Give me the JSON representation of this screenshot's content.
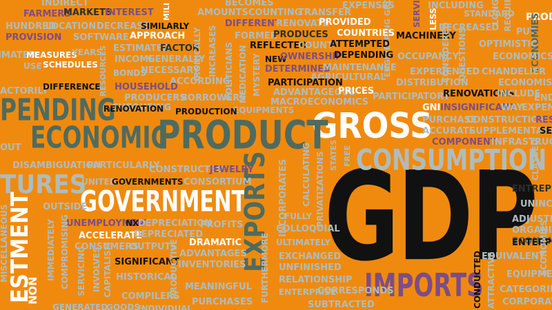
{
  "colors": {
    "background": "#f08a0e",
    "white": "#ffffff",
    "black": "#111111",
    "teal": "#4f6b5f",
    "gray": "#aebcbd",
    "purple": "#7d4d86"
  },
  "words": {
    "gdp": "GDP",
    "gross": "GROSS",
    "product": "PRODUCT",
    "economic": "ECONOMIC",
    "government": "GOVERNMENT",
    "consumption": "CONSUMPTION",
    "imports": "IMPORTS",
    "exports": "EXPORTS",
    "spending": "PENDING",
    "tures": "TURES",
    "estment": "ESTMENT",
    "indirect": "INDIRECT",
    "farmers": "FARMERS",
    "markets": "MARKETS",
    "interest": "INTEREST",
    "becomes": "BECOMES",
    "amounts": "AMOUNTS",
    "counting": "COUNTING",
    "transfer": "TRANSFER",
    "expenses": "EXPENSES",
    "engineering": "ENGINEERING GRO",
    "service": "SERVICE",
    "including": "INCLUDING",
    "standard": "STANDARD",
    "long": "LONG",
    "requires": "REQUIRES",
    "produ": "PRODU",
    "hundred": "HUNDRED",
    "location": "LOCATION",
    "decrease": "DECREASE",
    "similarly": "SIMILARLY",
    "different": "DIFFERENT",
    "renovate": "RENOVATE",
    "provided": "PROVIDED",
    "less": "LESS",
    "decreased": "DECREASED",
    "put": "PUT",
    "provision": "PROVISION",
    "software": "SOFTWARE",
    "approach": "APPROACH",
    "former": "FORMER",
    "produces": "PRODUCES",
    "countries": "COUNTRIES",
    "machinery": "MACHINERY",
    "considered": "CONSIDERED",
    "economies": "ECONOMIES",
    "estimated": "ESTIMATED",
    "factor": "FACTOR",
    "reflected": "REFLECTED",
    "count": "COUNT",
    "attempted": "ATTEMPTED",
    "optimistic": "OPTIMISTIC",
    "measures": "MEASURES",
    "years": "YEARS",
    "ironically": "IRONICALLY",
    "new": "NEW",
    "ownership": "OWNERSHIP",
    "depending": "DEPENDING",
    "occupancy": "OCCUPANCY",
    "economics": "ECONOMICS",
    "use": "USE",
    "schedules": "SCHEDULES",
    "income": "INCOME",
    "generally": "GENERALLY",
    "increases": "INCREASES",
    "determined": "DETERMINED",
    "maintenance": "MAINTENANCE",
    "questions": "QUESTIONS",
    "bonds": "BONDS",
    "necessary": "NECESSARY",
    "politicians": "POLITICIANS",
    "agricultural": "AGRICULTURAL",
    "experienced": "EXPERIENCED",
    "chandelier": "CHANDELIER",
    "resources": "RESOURCES",
    "according": "ACCORDING",
    "medication": "MEDICATION",
    "participation": "PARTICIPATION",
    "distribution": "DISTRIBUTION",
    "economists": "ECONOMISTS",
    "household": "HOUSEHOLD",
    "mystery": "MYSTERY",
    "advantageous": "ADVANTAGEOUS",
    "prices": "PRICES",
    "participatory": "PARTICIPATORY",
    "include": "INCLUDE",
    "actorily": "ACTORILY",
    "difference": "DIFFERENCE",
    "producers": "PRODUCERS",
    "borrowers": "BORROWERS",
    "macroeconomics": "MACROECONOMICS",
    "renovations": "RENOVATIONS",
    "endo": "ENDO",
    "chequeing": "CHEQUEING",
    "production": "PRODUCTION",
    "equipments": "EQUIPMENTS",
    "gni": "GNI",
    "insignificant": "INSIGNIFICANT",
    "way": "WAY",
    "expend": "EXPEND",
    "renovation": "RENOVATION",
    "purchase": "PURCHASE",
    "construction": "CONSTRUCTION",
    "res": "RES",
    "accurate": "ACCURATE",
    "supplementary": "SUPPLEMENTARY",
    "se": "SE",
    "out": "OUT",
    "component": "COMPONENT",
    "infrastructur": "INFRASTRUCTUR",
    "disambiguation": "DISAMBIGUATION",
    "particularly": "PARTICULARLY",
    "states": "STATES",
    "free": "FREE",
    "classed": "CLASSED",
    "constructed": "CONSTRUCTED",
    "jewelry": "JEWELRY",
    "calculating": "CALCULATING",
    "united": "UNITED",
    "governments": "GOVERNMENTS",
    "consortium": "CONSORTIUM",
    "incorporates": "INCORPORATES",
    "privatizations": "PRIVATIZATIONS",
    "entrepre": "ENTREPRE",
    "outside": "OUTSIDE",
    "uninco": "UNINCO",
    "miscellaneous": "MISCELLANEOUS",
    "immediately": "IMMEDIATELY",
    "unemployment": "UNEMPLOYMENT",
    "nx": "NX",
    "depreciation": "DEPRECIATION",
    "profits": "PROFITS",
    "fully": "FULLY",
    "adjustm": "ADJUSTM",
    "organisa": "ORGANISA",
    "accelerate": "ACCELERATE",
    "depreciated": "DEPRECIATED",
    "colloquial": "COLLOQUIAL",
    "economic_small": "ECONOMIC",
    "enterpri": "ENTERPRI",
    "consumers": "CONSUMERS",
    "outputs": "OUTPUTS",
    "dramatic": "DRAMATIC",
    "ultimately": "ULTIMATELY",
    "economies_small": "ECONOMIES",
    "compromising": "COMPROMISING",
    "advantages": "ADVANTAGES",
    "equivalent": "EQUIVALENT",
    "servicing": "SERVICING",
    "involves": "INVOLVES",
    "significant": "SIGNIFICANT",
    "inventories": "INVENTORIES",
    "exchanged": "EXCHANGED",
    "capitalism": "CAPITALISM",
    "furthermore": "FURTHERMORE",
    "unfinished": "UNFINISHED",
    "equipments_small": "EQUIPMENTS",
    "historical": "HISTORICAL",
    "productive": "PRODUCTIVE",
    "relationship": "RELATIONSHIP",
    "attractive": "ATTRACTIVE",
    "meaningful": "MEANINGFUL",
    "categories": "CATEGORIES",
    "compilers": "COMPILERS",
    "enterprise": "ENTERPRISE",
    "corresponds": "CORRESPONDS",
    "conducted": "CONDUCTED",
    "corporate": "CORPORATE",
    "purchases": "PURCHASES",
    "generated": "GENERATED",
    "goods": "GOODS",
    "individual": "INDIVIDUAL",
    "subtracted": "SUBTRACTED",
    "non": "NON",
    "mili": "MILI"
  }
}
